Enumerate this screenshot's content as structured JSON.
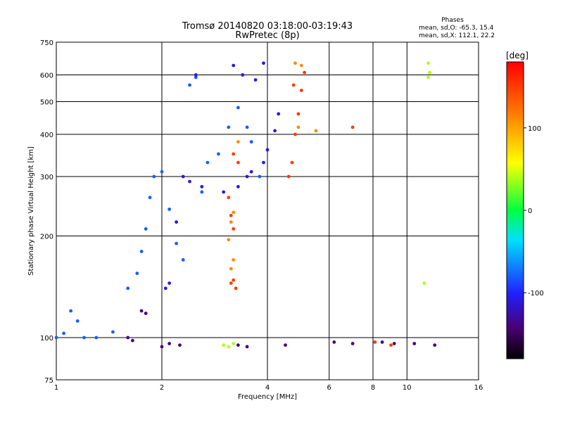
{
  "chart_data": {
    "type": "scatter",
    "title": "Tromsø 20140820 03:18:00-03:19:43",
    "subtitle": "RwPretec (8p)",
    "stats": {
      "heading": "Phases",
      "line1": "mean, sd,O: -65.3, 15.4",
      "line2": "mean, sd,X: 112.1, 22.2"
    },
    "xlabel": "Frequency [MHz]",
    "ylabel": "Stationary phase Virtual Height [km]",
    "x_scale": "log",
    "y_scale": "log",
    "xlim": [
      1,
      16
    ],
    "ylim": [
      75,
      750
    ],
    "x_ticks": [
      1,
      2,
      4,
      6,
      8,
      10,
      16
    ],
    "x_tick_labels": [
      "1",
      "2",
      "4",
      "6",
      "8",
      "10",
      "16"
    ],
    "y_ticks": [
      75,
      100,
      200,
      300,
      400,
      500,
      600,
      750
    ],
    "y_tick_labels": [
      "75",
      "100",
      "200",
      "300",
      "400",
      "500",
      "600",
      "750"
    ],
    "grid": true,
    "colorbar": {
      "label": "[deg]",
      "range": [
        -180,
        180
      ],
      "ticks": [
        100,
        0,
        -100
      ],
      "tick_labels": [
        "100",
        "0",
        "-100"
      ]
    },
    "series": [
      {
        "values": [
          [
            1.0,
            100
          ],
          [
            1.05,
            103
          ],
          [
            1.1,
            120
          ],
          [
            1.15,
            112
          ],
          [
            1.2,
            100
          ],
          [
            1.3,
            100
          ],
          [
            1.45,
            104
          ],
          [
            1.6,
            140
          ],
          [
            1.7,
            155
          ],
          [
            1.75,
            180
          ],
          [
            1.8,
            210
          ],
          [
            1.85,
            260
          ],
          [
            1.9,
            300
          ],
          [
            2.0,
            310
          ],
          [
            2.1,
            240
          ],
          [
            2.2,
            190
          ],
          [
            2.3,
            170
          ],
          [
            2.4,
            560
          ],
          [
            2.5,
            590
          ],
          [
            2.6,
            270
          ],
          [
            2.7,
            330
          ],
          [
            2.9,
            350
          ],
          [
            3.1,
            420
          ],
          [
            3.3,
            480
          ],
          [
            3.5,
            420
          ],
          [
            3.6,
            380
          ],
          [
            3.8,
            300
          ]
        ],
        "phase": -80
      },
      {
        "values": [
          [
            2.05,
            140
          ],
          [
            2.1,
            145
          ],
          [
            2.2,
            220
          ],
          [
            2.3,
            300
          ],
          [
            2.4,
            290
          ],
          [
            2.5,
            600
          ],
          [
            2.6,
            280
          ],
          [
            3.0,
            270
          ],
          [
            3.3,
            280
          ],
          [
            3.5,
            300
          ],
          [
            3.6,
            310
          ],
          [
            3.9,
            330
          ],
          [
            4.0,
            360
          ],
          [
            4.2,
            410
          ],
          [
            4.3,
            460
          ],
          [
            3.2,
            640
          ],
          [
            3.4,
            600
          ],
          [
            3.7,
            580
          ],
          [
            3.9,
            650
          ]
        ],
        "phase": -110
      },
      {
        "values": [
          [
            1.6,
            100
          ],
          [
            1.65,
            98
          ],
          [
            1.75,
            120
          ],
          [
            1.8,
            118
          ],
          [
            2.0,
            94
          ],
          [
            2.1,
            96
          ],
          [
            2.25,
            95
          ],
          [
            3.3,
            95
          ],
          [
            3.5,
            94
          ],
          [
            4.5,
            95
          ],
          [
            6.2,
            97
          ],
          [
            7.0,
            96
          ],
          [
            8.5,
            97
          ],
          [
            9.2,
            96
          ],
          [
            10.5,
            96
          ],
          [
            12.0,
            95
          ]
        ],
        "phase": -140
      },
      {
        "values": [
          [
            4.6,
            300
          ],
          [
            4.7,
            330
          ],
          [
            4.8,
            400
          ],
          [
            4.9,
            460
          ],
          [
            5.0,
            540
          ],
          [
            5.1,
            610
          ],
          [
            4.75,
            560
          ],
          [
            3.1,
            260
          ],
          [
            3.15,
            230
          ],
          [
            3.2,
            210
          ],
          [
            3.15,
            145
          ],
          [
            3.2,
            148
          ],
          [
            3.25,
            140
          ],
          [
            3.2,
            350
          ],
          [
            3.3,
            330
          ],
          [
            7.0,
            420
          ],
          [
            8.1,
            97
          ],
          [
            9.0,
            95
          ]
        ],
        "phase": 150
      },
      {
        "values": [
          [
            3.1,
            195
          ],
          [
            3.15,
            220
          ],
          [
            3.2,
            235
          ],
          [
            4.9,
            420
          ],
          [
            5.0,
            640
          ],
          [
            4.8,
            650
          ],
          [
            3.15,
            160
          ],
          [
            3.2,
            170
          ],
          [
            5.5,
            410
          ],
          [
            3.3,
            380
          ]
        ],
        "phase": 110
      },
      {
        "values": [
          [
            3.0,
            95
          ],
          [
            3.1,
            94
          ],
          [
            3.2,
            96
          ],
          [
            11.5,
            650
          ],
          [
            11.6,
            610
          ],
          [
            11.5,
            590
          ],
          [
            11.2,
            145
          ]
        ],
        "phase": 40
      }
    ]
  }
}
